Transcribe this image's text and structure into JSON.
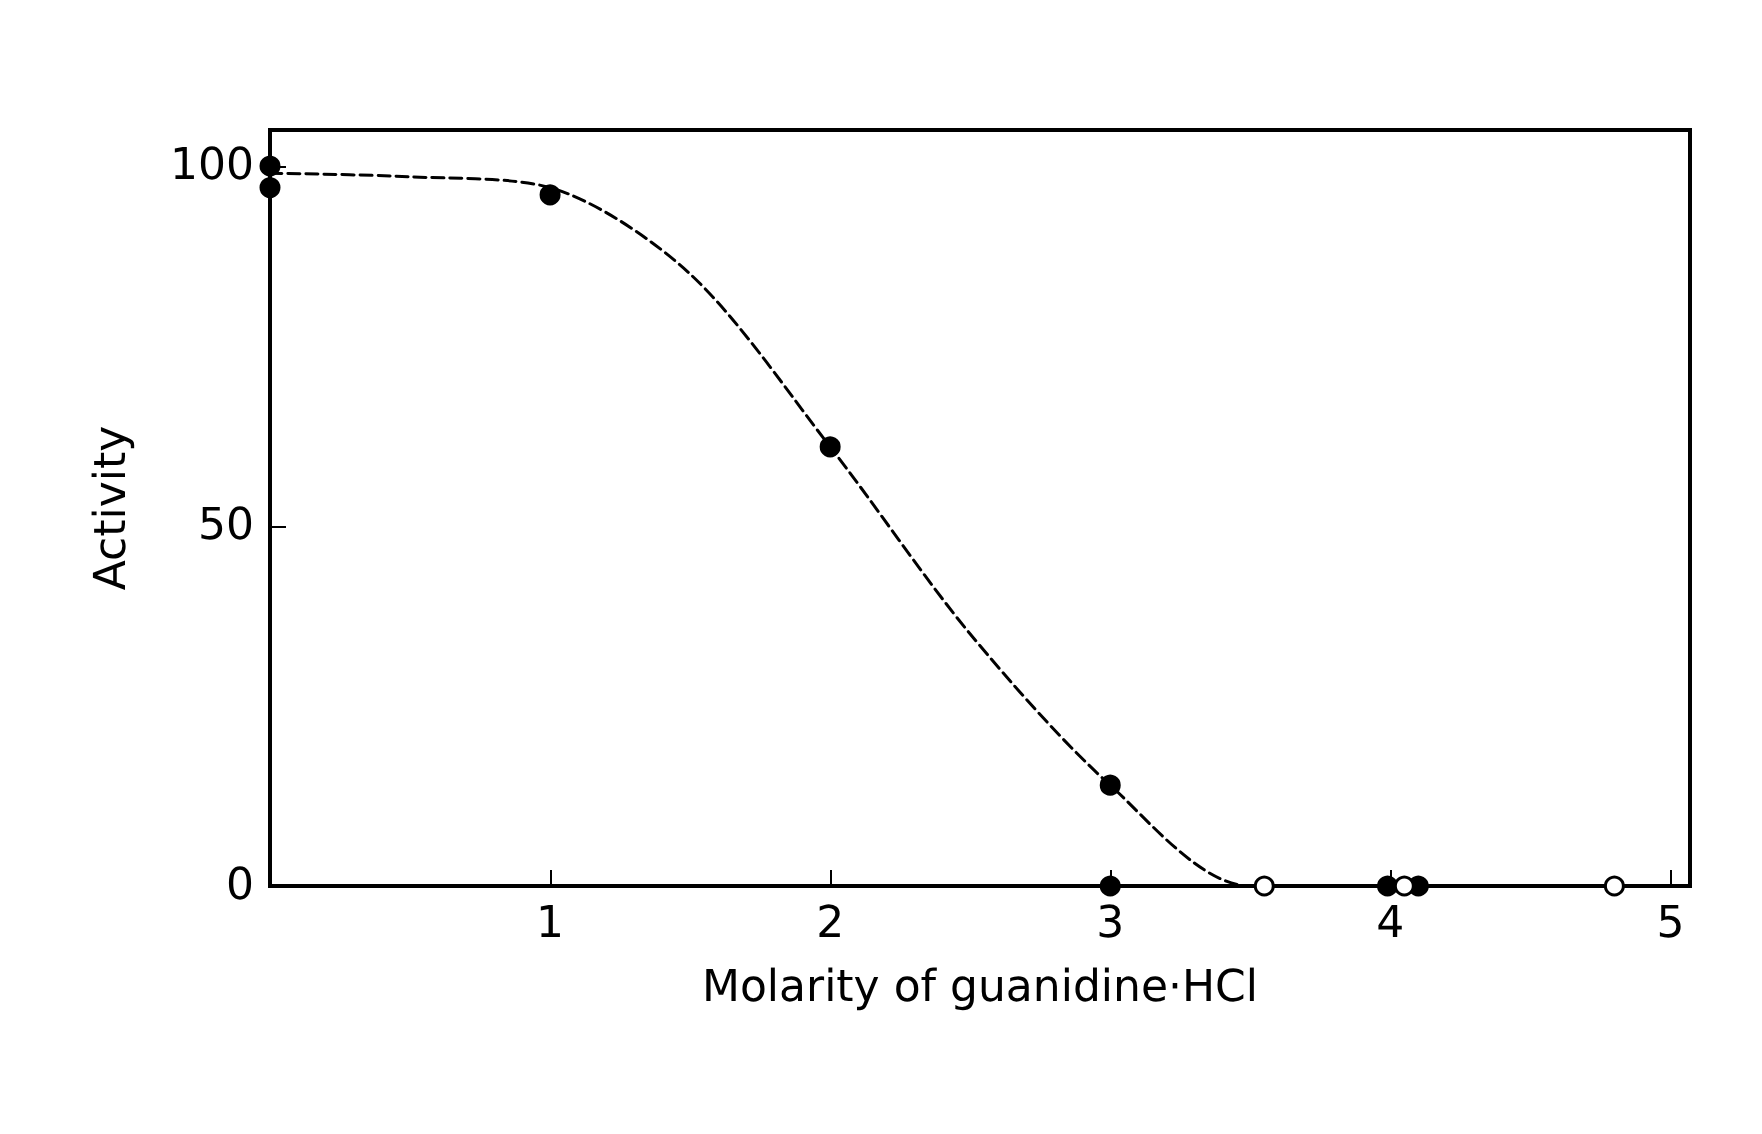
{
  "chart_data": {
    "type": "scatter",
    "xlabel": "Molarity of guanidine·HCl",
    "ylabel": "Activity",
    "xlim": [
      0,
      5.07
    ],
    "xticks": [
      1,
      2,
      3,
      4,
      5
    ],
    "ylim": [
      0,
      105
    ],
    "yticks": [
      0,
      50,
      100
    ],
    "grid": false,
    "series": [
      {
        "marker": "circle",
        "color": "#000000",
        "x": [
          0,
          0,
          1,
          2,
          3,
          3,
          3.99,
          4.1
        ],
        "values": [
          100,
          97,
          96,
          61,
          14,
          0,
          0,
          0
        ]
      },
      {
        "marker": "circle",
        "color": "#ffffff",
        "x": [
          3.55,
          4.05,
          4.8
        ],
        "values": [
          0,
          0,
          0
        ]
      },
      {
        "type": "line",
        "line_style": "dashed",
        "color": "#000000",
        "x": [
          0,
          0.5,
          1,
          1.5,
          2,
          2.5,
          3,
          3.5,
          5
        ],
        "values": [
          99,
          98.5,
          97,
          85,
          61,
          35,
          14,
          0,
          0
        ]
      }
    ]
  }
}
